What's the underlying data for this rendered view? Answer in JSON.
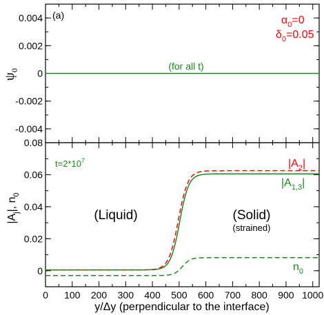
{
  "chart_data": [
    {
      "type": "line",
      "panel_label": "(a)",
      "ylabel": "ψ",
      "ylabel_sub": "0",
      "ylim": [
        -0.005,
        0.005
      ],
      "yticks": [
        "0.004",
        "0.002",
        "0",
        "-0.002",
        "-0.004"
      ],
      "ytick_values": [
        0.004,
        0.002,
        0,
        -0.002,
        -0.004
      ],
      "xlim": [
        0,
        1024
      ],
      "params": [
        {
          "sym": "α",
          "sub": "0",
          "val": "=0"
        },
        {
          "sym": "δ",
          "sub": "0",
          "val": "=0.05"
        }
      ],
      "annotation": "(for all t)",
      "series": [
        {
          "color": "#1a8a1a",
          "dash": "solid",
          "x": [
            0,
            1024
          ],
          "y": [
            0,
            0
          ]
        }
      ]
    },
    {
      "type": "line",
      "ylabel": "|A",
      "ylabel_sub": "j",
      "ylabel_rest": "|, n",
      "ylabel_sub2": "0",
      "ylim": [
        -0.01,
        0.08
      ],
      "yticks": [
        "0.08",
        "0.06",
        "0.04",
        "0.02",
        "0"
      ],
      "ytick_values": [
        0.08,
        0.06,
        0.04,
        0.02,
        0
      ],
      "xlim": [
        0,
        1024
      ],
      "xticks": [
        "0",
        "100",
        "200",
        "300",
        "400",
        "500",
        "600",
        "700",
        "800",
        "900",
        "1000"
      ],
      "xtick_values": [
        0,
        100,
        200,
        300,
        400,
        500,
        600,
        700,
        800,
        900,
        1000
      ],
      "xlabel": "y/Δy (perpendicular to the interface)",
      "time_label": "t=2*10",
      "time_exp": "7",
      "regions": {
        "liquid": "(Liquid)",
        "solid": "(Solid)",
        "solid_note": "(strained)"
      },
      "series_labels": [
        {
          "pre": "|A",
          "sub": "2",
          "post": "|",
          "color": "#ff0000"
        },
        {
          "pre": "|A",
          "sub": "1,3",
          "post": "|",
          "color": "#1a8a1a"
        },
        {
          "pre": "n",
          "sub": "0",
          "post": "",
          "color": "#1a8a1a"
        }
      ],
      "series": [
        {
          "color": "#ff0000",
          "dash": "dashed",
          "x0": 497,
          "width": 18,
          "low": 0.0005,
          "high": 0.0625
        },
        {
          "color": "#1a8a1a",
          "dash": "solid",
          "x0": 502,
          "width": 17,
          "low": 0.0005,
          "high": 0.0605
        },
        {
          "color": "#1a8a1a",
          "dash": "dashed",
          "x0": 512,
          "width": 15,
          "low": -0.003,
          "high": 0.0082
        }
      ]
    }
  ]
}
